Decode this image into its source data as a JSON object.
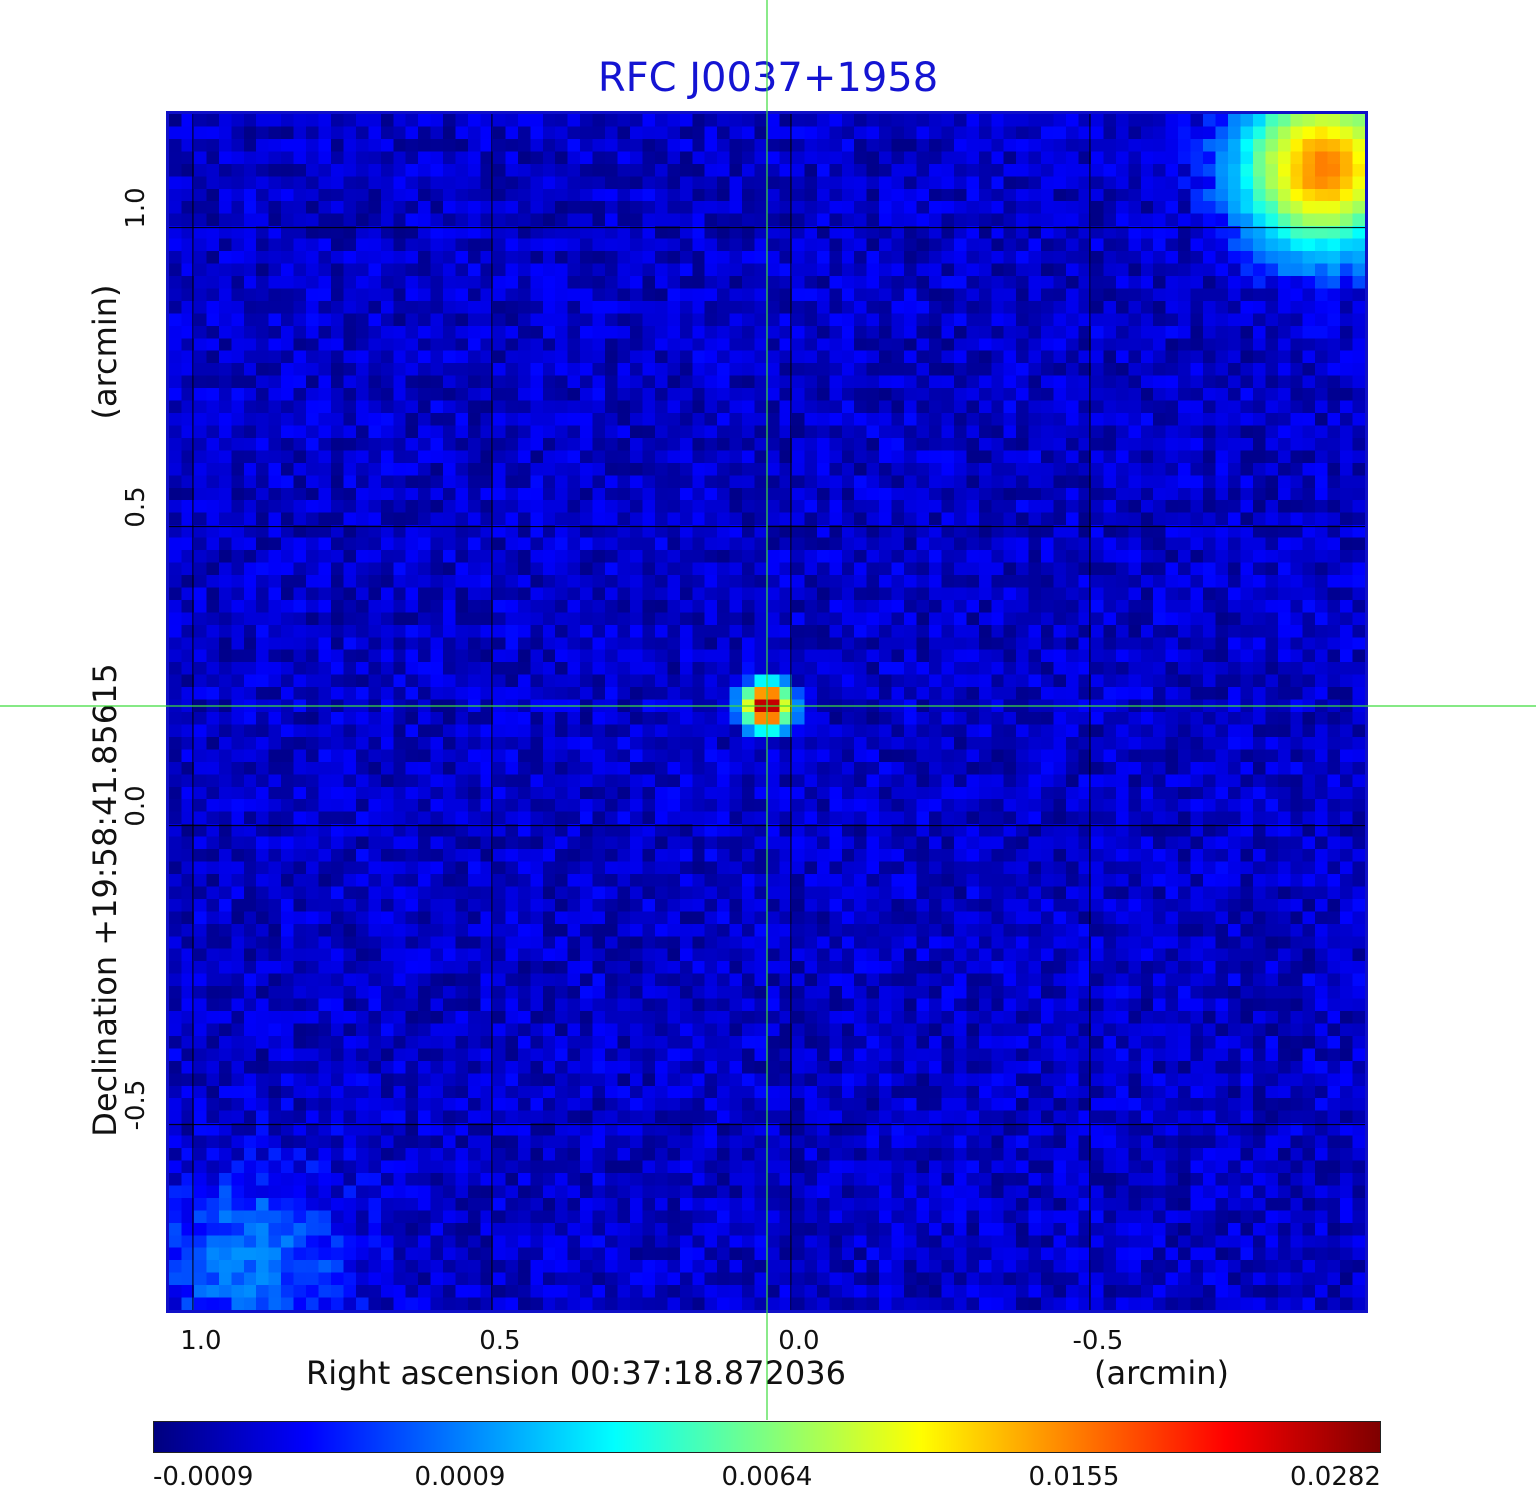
{
  "chart_data": {
    "type": "heatmap",
    "title": "RFC J0037+1958",
    "xlabel": "Right ascension  00:37:18.872036",
    "xunit": "(arcmin)",
    "ylabel": "Declination  +19:58:41.85615",
    "yunit": "(arcmin)",
    "x_ticks": [
      "1.0",
      "0.5",
      "0.0",
      "-0.5"
    ],
    "y_ticks": [
      "1.0",
      "0.5",
      "0.0",
      "-0.5"
    ],
    "xlim": [
      1.04,
      -0.96
    ],
    "ylim": [
      -0.81,
      1.19
    ],
    "grid": true,
    "colormap": "jet",
    "colorbar_ticks": [
      "-0.0009",
      "0.0009",
      "0.0064",
      "0.0155",
      "0.0282"
    ],
    "value_range": [
      -0.0009,
      0.0282
    ],
    "crosshair": {
      "x": 0.04,
      "y": 0.2
    },
    "features": [
      {
        "label": "central source",
        "x": 0.04,
        "y": 0.2,
        "peak": 0.0282
      },
      {
        "label": "diffuse emission top-right",
        "x": -0.89,
        "y": 1.1,
        "peak": 0.0155
      },
      {
        "label": "diffuse emission bottom-left",
        "x": 0.9,
        "y": -0.73,
        "peak": 0.0009
      }
    ],
    "colors": {
      "title": "#1414d2",
      "frame": "#1010c8",
      "crosshair": "#3cdc3c",
      "grid": "#000000"
    }
  }
}
